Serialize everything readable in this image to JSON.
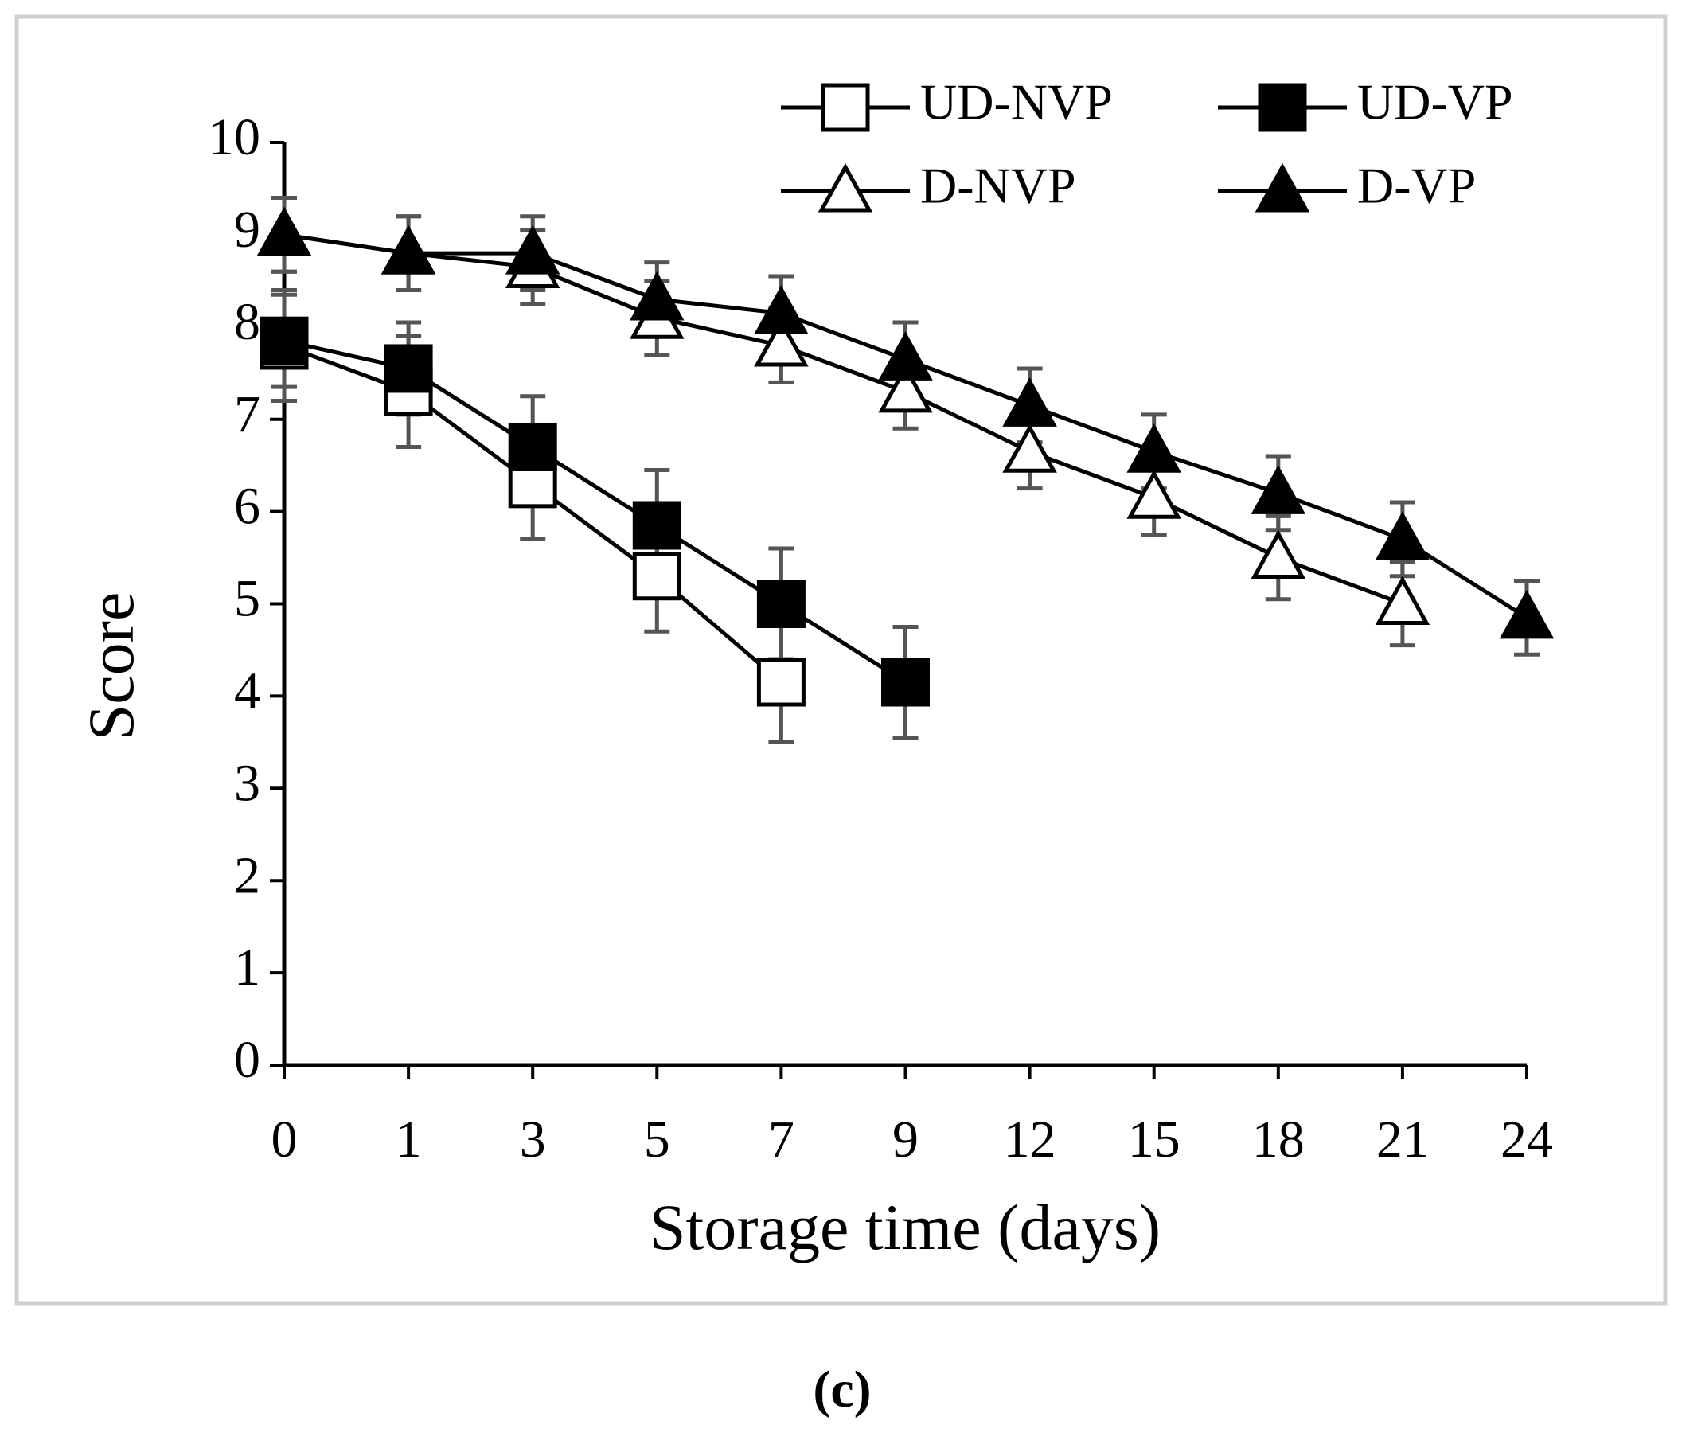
{
  "chart_data": {
    "type": "line",
    "caption": "(c)",
    "xlabel": "Storage time (days)",
    "ylabel": "Score",
    "categories": [
      "0",
      "1",
      "3",
      "5",
      "7",
      "9",
      "12",
      "15",
      "18",
      "21",
      "24"
    ],
    "ylim": [
      0,
      10
    ],
    "yticks": [
      0,
      1,
      2,
      3,
      4,
      5,
      6,
      7,
      8,
      9,
      10
    ],
    "legend": "top",
    "series": [
      {
        "name": "UD-NVP",
        "color": "#000000",
        "marker": "square",
        "filled": false,
        "values": [
          7.8,
          7.3,
          6.3,
          5.3,
          4.15,
          null,
          null,
          null,
          null,
          null,
          null
        ],
        "errors": [
          0.6,
          0.6,
          0.6,
          0.6,
          0.65,
          null,
          null,
          null,
          null,
          null,
          null
        ]
      },
      {
        "name": "UD-VP",
        "color": "#000000",
        "marker": "square",
        "filled": true,
        "values": [
          7.85,
          7.55,
          6.7,
          5.85,
          5.0,
          4.15,
          null,
          null,
          null,
          null,
          null
        ],
        "errors": [
          0.5,
          0.5,
          0.55,
          0.6,
          0.6,
          0.6,
          null,
          null,
          null,
          null,
          null
        ]
      },
      {
        "name": "D-NVP",
        "color": "#000000",
        "marker": "triangle",
        "filled": false,
        "values": [
          9.0,
          8.8,
          8.65,
          8.1,
          7.8,
          7.3,
          6.65,
          6.15,
          5.5,
          5.0,
          null
        ],
        "errors": [
          0.4,
          0.4,
          0.4,
          0.4,
          0.4,
          0.4,
          0.4,
          0.4,
          0.45,
          0.45,
          null
        ]
      },
      {
        "name": "D-VP",
        "color": "#000000",
        "marker": "triangle",
        "filled": true,
        "values": [
          9.0,
          8.8,
          8.8,
          8.3,
          8.15,
          7.65,
          7.15,
          6.65,
          6.2,
          5.7,
          4.85
        ],
        "errors": [
          0.4,
          0.4,
          0.4,
          0.4,
          0.4,
          0.4,
          0.4,
          0.4,
          0.4,
          0.4,
          0.4
        ]
      }
    ]
  }
}
